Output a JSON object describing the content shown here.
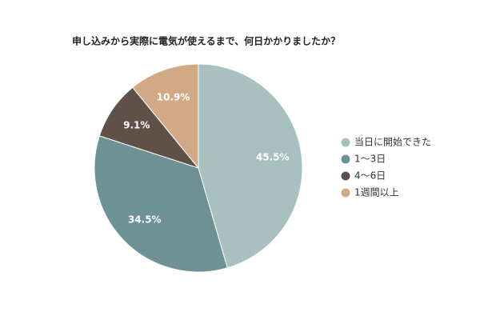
{
  "chart_data": {
    "type": "pie",
    "title": "申し込みから実際に電気が使えるまで、何日かかりましたか？",
    "categories": [
      "当日に開始できた",
      "1〜3日",
      "4〜6日",
      "1週間以上"
    ],
    "values": [
      45.5,
      34.5,
      9.1,
      10.9
    ],
    "value_labels": [
      "45.5%",
      "34.5%",
      "9.1%",
      "10.9%"
    ],
    "colors": [
      "#a8c0c0",
      "#6e9196",
      "#5f5148",
      "#d1aa85"
    ],
    "legend": "right"
  }
}
